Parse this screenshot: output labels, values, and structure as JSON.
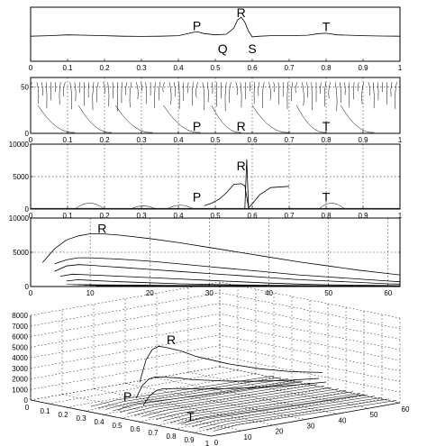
{
  "chart_data": [
    {
      "type": "line",
      "panel": "ecg-signal",
      "xlim": [
        0,
        1
      ],
      "x_ticks": [
        "0",
        "0.1",
        "0.2",
        "0.3",
        "0.4",
        "0.5",
        "0.6",
        "0.7",
        "0.8",
        "0.9",
        "1"
      ],
      "y_ticks": [],
      "grid": false,
      "annotations": [
        {
          "text": "P",
          "x": 0.45,
          "y": 0.35
        },
        {
          "text": "Q",
          "x": 0.52,
          "y": -0.8
        },
        {
          "text": "R",
          "x": 0.57,
          "y": 1.0
        },
        {
          "text": "S",
          "x": 0.6,
          "y": -0.8
        },
        {
          "text": "T",
          "x": 0.8,
          "y": 0.3
        }
      ],
      "series": [
        {
          "x": [
            0,
            0.05,
            0.1,
            0.15,
            0.2,
            0.25,
            0.3,
            0.35,
            0.4,
            0.43,
            0.45,
            0.47,
            0.5,
            0.53,
            0.55,
            0.56,
            0.57,
            0.58,
            0.59,
            0.6,
            0.62,
            0.65,
            0.7,
            0.75,
            0.78,
            0.8,
            0.83,
            0.9,
            0.95,
            1
          ],
          "y": [
            0.05,
            0.08,
            0.12,
            0.1,
            0.08,
            0.05,
            0.04,
            0.05,
            0.08,
            0.2,
            0.28,
            0.18,
            0.12,
            0.15,
            0.45,
            0.85,
            1.0,
            0.75,
            0.3,
            0.02,
            0.05,
            0.08,
            0.08,
            0.1,
            0.18,
            0.2,
            0.12,
            0.08,
            0.06,
            0.05
          ]
        }
      ]
    },
    {
      "type": "line",
      "panel": "scale-ridges",
      "xlim": [
        0,
        1
      ],
      "ylim": [
        0,
        60
      ],
      "x_ticks": [
        "0",
        "0.1",
        "0.2",
        "0.3",
        "0.4",
        "0.5",
        "0.6",
        "0.7",
        "0.8",
        "0.9",
        "1"
      ],
      "y_ticks": [
        "0",
        "50"
      ],
      "grid": true,
      "annotations": [
        {
          "text": "P",
          "x": 0.45,
          "y": 3
        },
        {
          "text": "R",
          "x": 0.57,
          "y": 3
        },
        {
          "text": "T",
          "x": 0.8,
          "y": 3
        }
      ]
    },
    {
      "type": "line",
      "panel": "wavelet-modulus",
      "xlim": [
        0,
        1
      ],
      "ylim": [
        0,
        10000
      ],
      "x_ticks": [
        "0",
        "0.1",
        "0.2",
        "0.3",
        "0.4",
        "0.5",
        "0.6",
        "0.7",
        "0.8",
        "0.9",
        "1"
      ],
      "y_ticks": [
        "0",
        "5000",
        "10000"
      ],
      "grid": true,
      "annotations": [
        {
          "text": "P",
          "x": 0.45,
          "y": 1200
        },
        {
          "text": "R",
          "x": 0.57,
          "y": 6000
        },
        {
          "text": "T",
          "x": 0.8,
          "y": 1200
        }
      ],
      "series": [
        {
          "x": [
            0.47,
            0.49,
            0.51,
            0.53,
            0.55,
            0.57,
            0.58,
            0.59,
            0.6,
            0.62,
            0.65,
            0.7
          ],
          "y": [
            500,
            900,
            1500,
            2500,
            3800,
            3900,
            3600,
            200,
            800,
            2200,
            3300,
            3500
          ]
        }
      ]
    },
    {
      "type": "line",
      "panel": "modulus-vs-scale",
      "xlim": [
        0,
        62
      ],
      "ylim": [
        0,
        10000
      ],
      "x_ticks": [
        "0",
        "10",
        "20",
        "30",
        "40",
        "50",
        "60"
      ],
      "y_ticks": [
        "0",
        "5000",
        "10000"
      ],
      "grid": true,
      "annotations": [
        {
          "text": "R",
          "x": 12,
          "y": 7800
        }
      ],
      "series": [
        {
          "x": [
            2,
            4,
            6,
            8,
            10,
            12,
            15,
            20,
            25,
            30,
            35,
            40,
            45,
            50,
            55,
            60,
            62
          ],
          "y": [
            3500,
            5500,
            6800,
            7400,
            7700,
            7700,
            7500,
            7000,
            6400,
            5700,
            5000,
            4300,
            3600,
            3000,
            2400,
            1900,
            1700
          ]
        },
        {
          "x": [
            4,
            6,
            8,
            10,
            15,
            20,
            25,
            30,
            35,
            40,
            45,
            50,
            55,
            60,
            62
          ],
          "y": [
            3300,
            3900,
            4200,
            4200,
            4000,
            3700,
            3300,
            2900,
            2500,
            2100,
            1700,
            1400,
            1100,
            800,
            700
          ]
        },
        {
          "x": [
            4,
            6,
            8,
            10,
            15,
            20,
            25,
            30,
            35,
            40,
            45,
            50,
            55,
            60,
            62
          ],
          "y": [
            2200,
            3000,
            3200,
            3100,
            2800,
            2500,
            2200,
            1900,
            1600,
            1300,
            1000,
            800,
            600,
            400,
            350
          ]
        },
        {
          "x": [
            5,
            7,
            10,
            15,
            20,
            25,
            30,
            35,
            40,
            45,
            50,
            55,
            60,
            62
          ],
          "y": [
            1500,
            1800,
            1700,
            1500,
            1300,
            1100,
            900,
            700,
            500,
            350,
            250,
            200,
            150,
            120
          ]
        },
        {
          "x": [
            6,
            8,
            10,
            15,
            20,
            25,
            30,
            40,
            50,
            60,
            62
          ],
          "y": [
            800,
            1000,
            900,
            700,
            550,
            400,
            300,
            180,
            100,
            60,
            50
          ]
        }
      ]
    },
    {
      "type": "surface",
      "panel": "3d-modulus",
      "zlim": [
        0,
        8000
      ],
      "z_ticks": [
        "0",
        "1000",
        "2000",
        "3000",
        "4000",
        "5000",
        "6000",
        "7000",
        "8000"
      ],
      "x_ticks": [
        "0",
        "0.1",
        "0.2",
        "0.3",
        "0.4",
        "0.5",
        "0.6",
        "0.7",
        "0.8",
        "0.9",
        "1"
      ],
      "y_ticks": [
        "0",
        "10",
        "20",
        "30",
        "40",
        "50",
        "60"
      ],
      "grid": true,
      "annotations": [
        {
          "text": "R",
          "x": 0.57,
          "y": 12,
          "z": 6600
        },
        {
          "text": "P",
          "x": 0.45,
          "y": 5,
          "z": 1200
        },
        {
          "text": "T",
          "x": 0.8,
          "y": 5,
          "z": 500
        }
      ]
    }
  ]
}
